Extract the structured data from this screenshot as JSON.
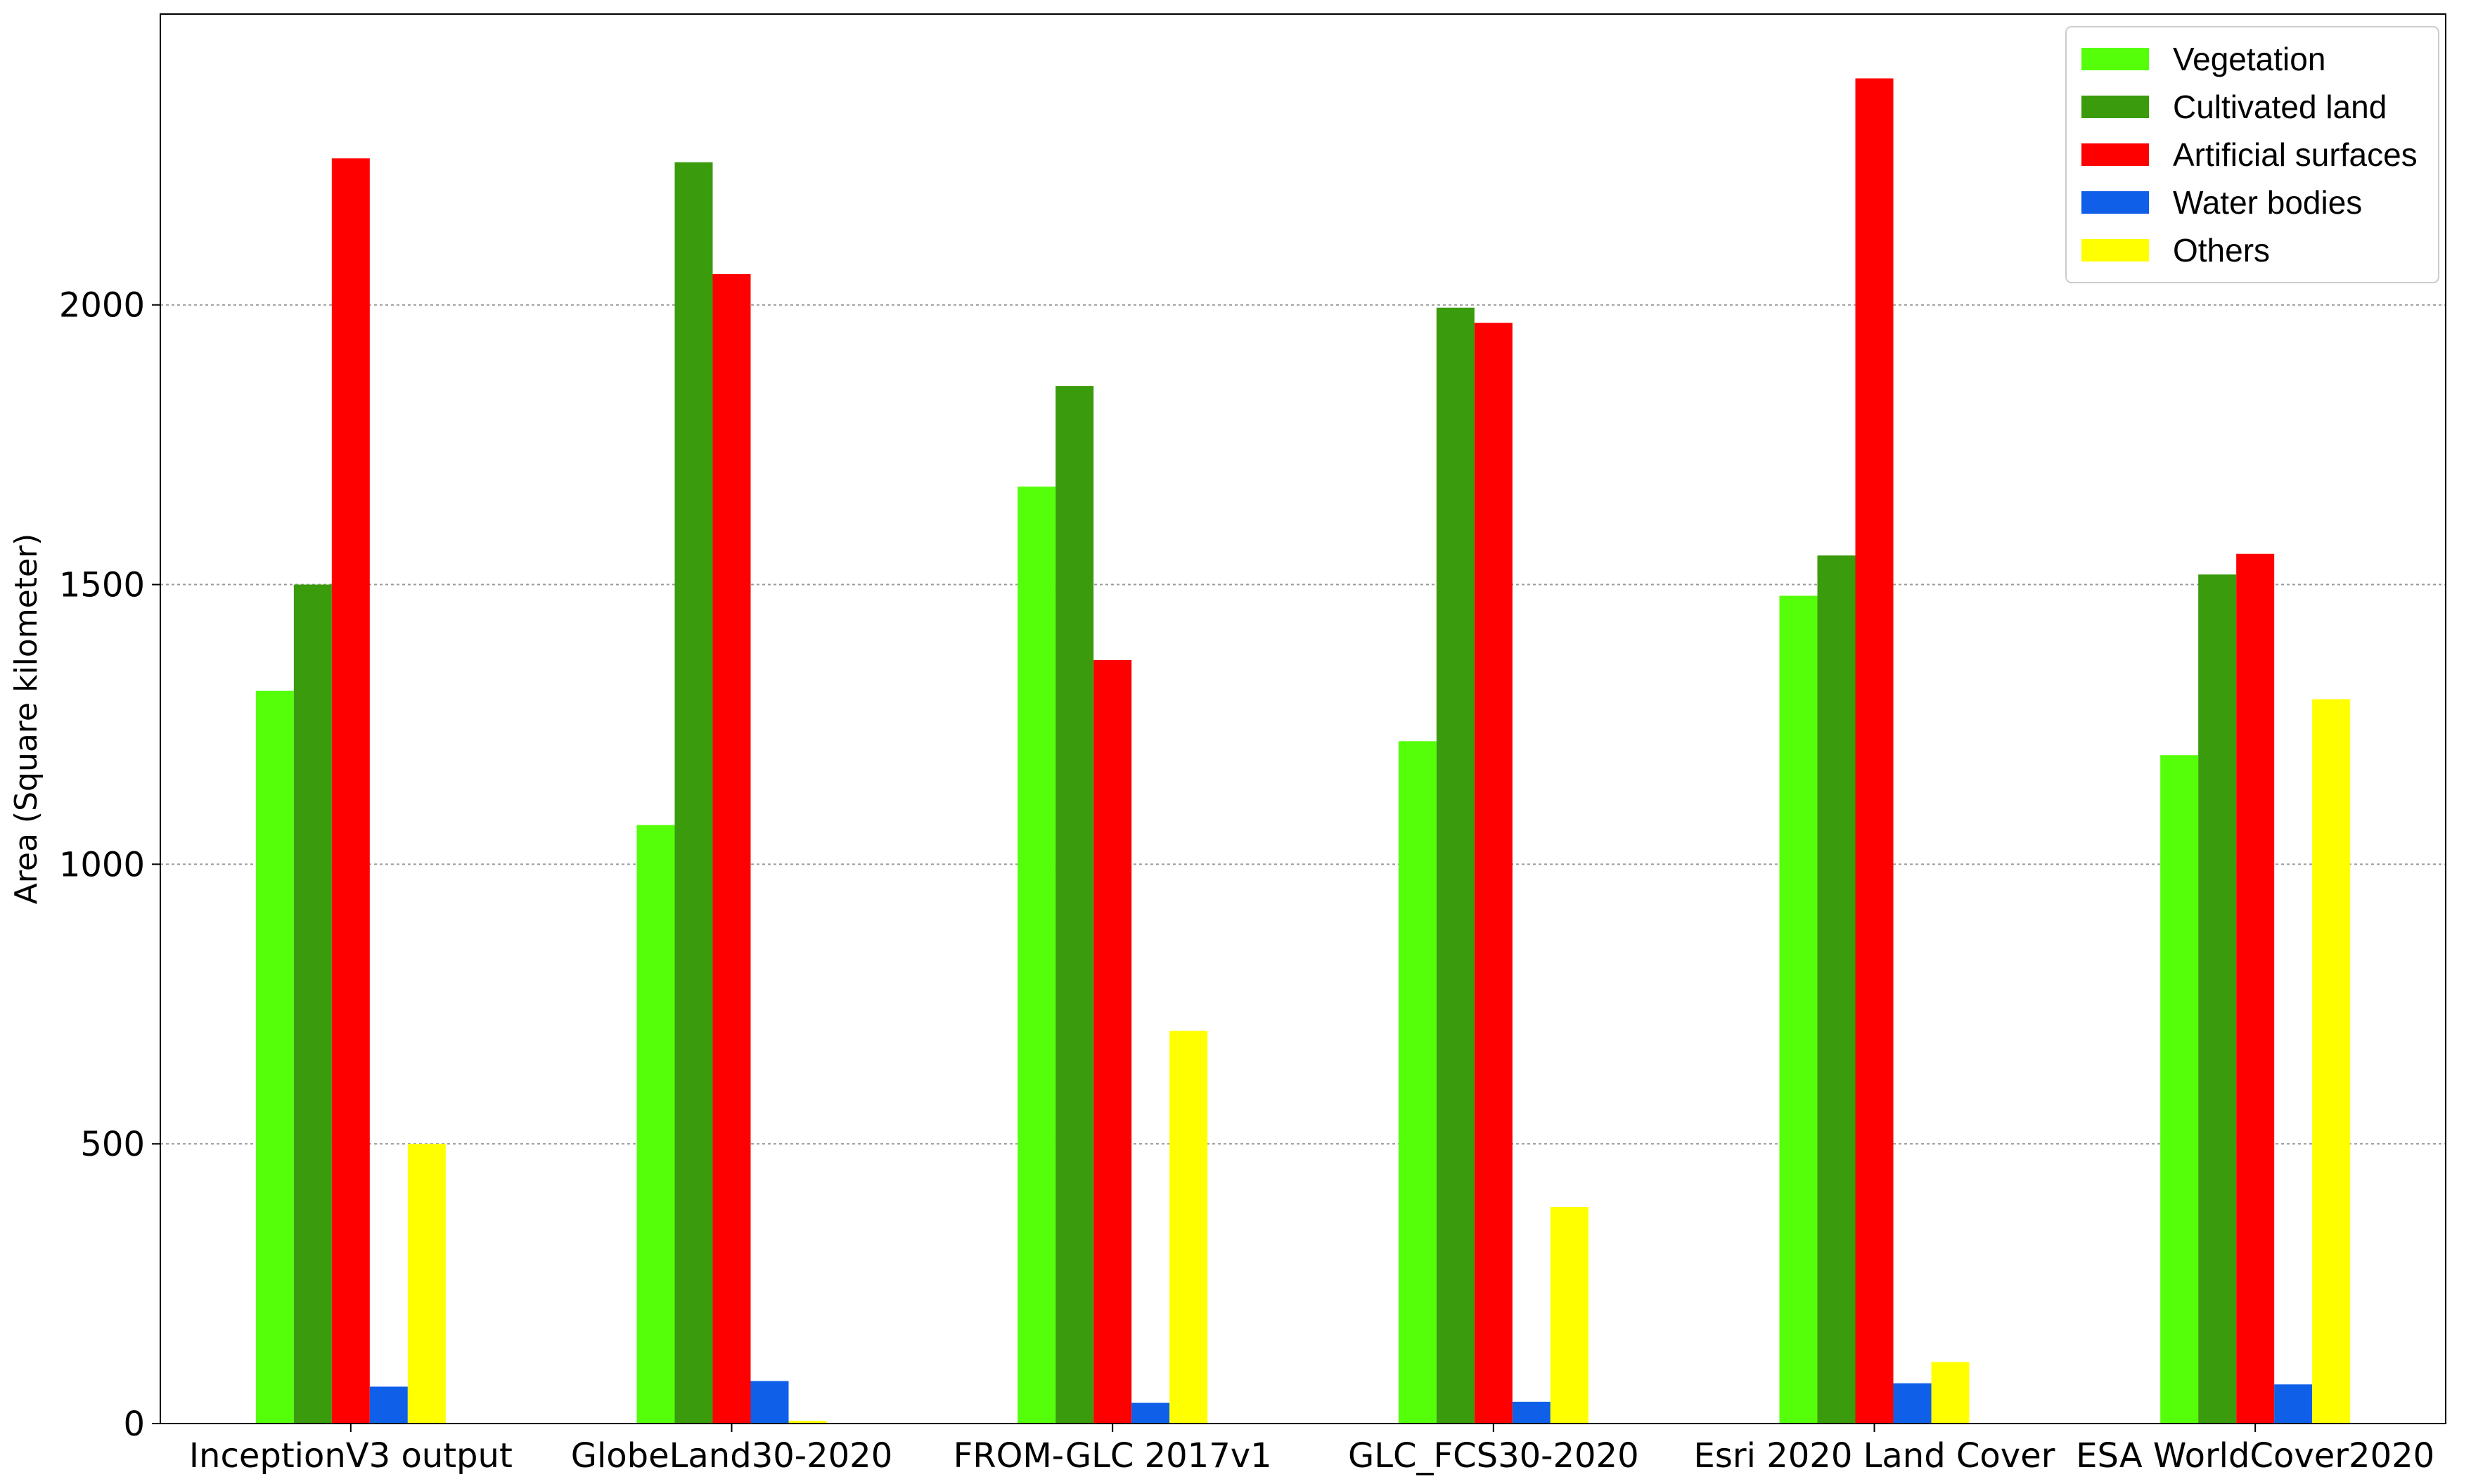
{
  "chart_data": {
    "type": "bar",
    "title": "",
    "xlabel": "",
    "ylabel": "Area (Square kilometer)",
    "ylim": [
      0,
      2520
    ],
    "yticks": [
      0,
      500,
      1000,
      1500,
      2000
    ],
    "grid": "y-dotted",
    "legend_position": "top-right",
    "categories": [
      "InceptionV3 output",
      "GlobeLand30-2020",
      "FROM-GLC 2017v1",
      "GLC_FCS30-2020",
      "Esri 2020 Land Cover",
      "ESA WorldCover2020"
    ],
    "series": [
      {
        "name": "Vegetation",
        "color": "#55ff0a",
        "values": [
          1310,
          1070,
          1675,
          1220,
          1480,
          1195
        ]
      },
      {
        "name": "Cultivated land",
        "color": "#3a9b0c",
        "values": [
          1500,
          2255,
          1855,
          1995,
          1552,
          1518
        ]
      },
      {
        "name": "Artificial surfaces",
        "color": "#ff0000",
        "values": [
          2262,
          2055,
          1365,
          1968,
          2405,
          1555
        ]
      },
      {
        "name": "Water bodies",
        "color": "#0f5fe8",
        "values": [
          66,
          76,
          37,
          39,
          72,
          70
        ]
      },
      {
        "name": "Others",
        "color": "#ffff00",
        "values": [
          500,
          5,
          702,
          387,
          110,
          1295
        ]
      }
    ]
  }
}
